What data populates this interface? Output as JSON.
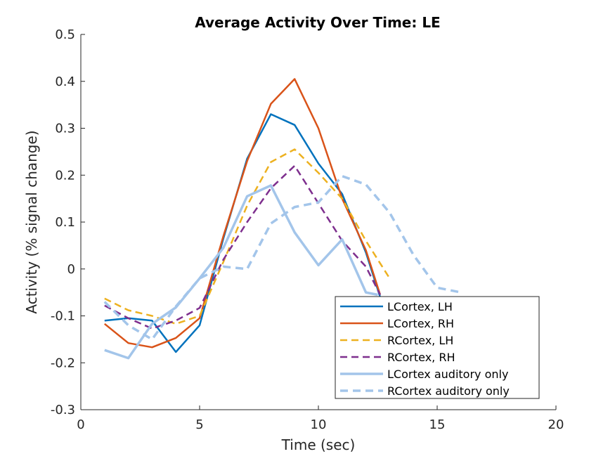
{
  "chart_data": {
    "type": "line",
    "title": "Average Activity Over Time: LE",
    "xlabel": "Time (sec)",
    "ylabel": "Activity (% signal change)",
    "xlim": [
      0,
      20
    ],
    "ylim": [
      -0.3,
      0.5
    ],
    "xticks": [
      0,
      5,
      10,
      15,
      20
    ],
    "xtick_labels": [
      "0",
      "5",
      "10",
      "15",
      "20"
    ],
    "yticks": [
      -0.3,
      -0.2,
      -0.1,
      0,
      0.1,
      0.2,
      0.3,
      0.4,
      0.5
    ],
    "ytick_labels": [
      "-0.3",
      "-0.2",
      "-0.1",
      "0",
      "0.1",
      "0.2",
      "0.3",
      "0.4",
      "0.5"
    ],
    "grid": false,
    "legend_position": "bottom-right",
    "series": [
      {
        "name": "LCortex, LH",
        "color": "#0072bd",
        "dash": "solid",
        "points": [
          [
            1,
            -0.11
          ],
          [
            2,
            -0.105
          ],
          [
            3,
            -0.11
          ],
          [
            4,
            -0.177
          ],
          [
            5,
            -0.12
          ],
          [
            6,
            0.065
          ],
          [
            7,
            0.235
          ],
          [
            8,
            0.33
          ],
          [
            9,
            0.307
          ],
          [
            10,
            0.225
          ],
          [
            11,
            0.16
          ],
          [
            12,
            0.035
          ],
          [
            12.6,
            -0.06
          ]
        ]
      },
      {
        "name": "LCortex, RH",
        "color": "#d95319",
        "dash": "solid",
        "points": [
          [
            1,
            -0.117
          ],
          [
            2,
            -0.158
          ],
          [
            3,
            -0.167
          ],
          [
            4,
            -0.147
          ],
          [
            5,
            -0.105
          ],
          [
            6,
            0.07
          ],
          [
            7,
            0.23
          ],
          [
            8,
            0.352
          ],
          [
            9,
            0.405
          ],
          [
            10,
            0.3
          ],
          [
            11,
            0.15
          ],
          [
            12,
            0.04
          ],
          [
            12.6,
            -0.055
          ]
        ]
      },
      {
        "name": "RCortex, LH",
        "color": "#edb120",
        "dash": "dashed",
        "points": [
          [
            1,
            -0.063
          ],
          [
            2,
            -0.088
          ],
          [
            3,
            -0.1
          ],
          [
            4,
            -0.117
          ],
          [
            5,
            -0.1
          ],
          [
            6,
            0.015
          ],
          [
            7,
            0.135
          ],
          [
            8,
            0.228
          ],
          [
            9,
            0.255
          ],
          [
            10,
            0.205
          ],
          [
            11,
            0.15
          ],
          [
            12,
            0.06
          ],
          [
            13,
            -0.02
          ]
        ]
      },
      {
        "name": "RCortex, RH",
        "color": "#7e2f8e",
        "dash": "dashed",
        "points": [
          [
            1,
            -0.078
          ],
          [
            2,
            -0.105
          ],
          [
            3,
            -0.127
          ],
          [
            4,
            -0.11
          ],
          [
            5,
            -0.083
          ],
          [
            6,
            0.02
          ],
          [
            7,
            0.1
          ],
          [
            8,
            0.172
          ],
          [
            9,
            0.22
          ],
          [
            10,
            0.14
          ],
          [
            11,
            0.06
          ],
          [
            12,
            0.005
          ],
          [
            12.6,
            -0.055
          ]
        ]
      },
      {
        "name": "LCortex auditory only",
        "color": "#a3c5ea",
        "dash": "solid",
        "points": [
          [
            1,
            -0.173
          ],
          [
            2,
            -0.19
          ],
          [
            3,
            -0.117
          ],
          [
            4,
            -0.082
          ],
          [
            5,
            -0.02
          ],
          [
            6,
            0.045
          ],
          [
            7,
            0.155
          ],
          [
            8,
            0.178
          ],
          [
            9,
            0.078
          ],
          [
            10,
            0.008
          ],
          [
            11,
            0.063
          ],
          [
            12,
            -0.05
          ],
          [
            12.5,
            -0.055
          ]
        ]
      },
      {
        "name": "RCortex auditory only",
        "color": "#a3c5ea",
        "dash": "dashed",
        "points": [
          [
            1,
            -0.07
          ],
          [
            2,
            -0.12
          ],
          [
            3,
            -0.15
          ],
          [
            4,
            -0.08
          ],
          [
            5,
            -0.02
          ],
          [
            6,
            0.005
          ],
          [
            7,
            0.0
          ],
          [
            8,
            0.097
          ],
          [
            9,
            0.132
          ],
          [
            10,
            0.142
          ],
          [
            11,
            0.198
          ],
          [
            12,
            0.18
          ],
          [
            13,
            0.12
          ],
          [
            14,
            0.03
          ],
          [
            15,
            -0.04
          ],
          [
            16,
            -0.05
          ]
        ]
      }
    ]
  }
}
